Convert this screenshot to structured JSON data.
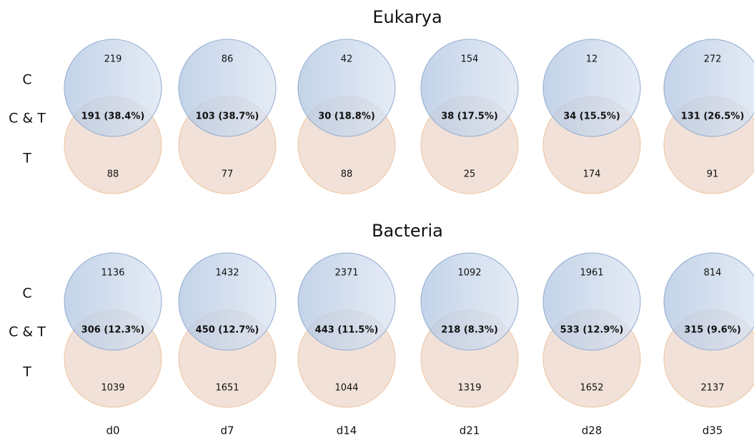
{
  "panels": [
    {
      "title": "Eukarya",
      "row_labels": [
        "C",
        "C & T",
        "T"
      ],
      "venns": [
        {
          "top": 219,
          "overlap": "191 (38.4%)",
          "bottom": 88
        },
        {
          "top": 86,
          "overlap": "103 (38.7%)",
          "bottom": 77
        },
        {
          "top": 42,
          "overlap": "30 (18.8%)",
          "bottom": 88
        },
        {
          "top": 154,
          "overlap": "38 (17.5%)",
          "bottom": 25
        },
        {
          "top": 12,
          "overlap": "34 (15.5%)",
          "bottom": 174
        },
        {
          "top": 272,
          "overlap": "131 (26.5%)",
          "bottom": 91
        }
      ]
    },
    {
      "title": "Bacteria",
      "row_labels": [
        "C",
        "C & T",
        "T"
      ],
      "venns": [
        {
          "top": 1136,
          "overlap": "306 (12.3%)",
          "bottom": 1039
        },
        {
          "top": 1432,
          "overlap": "450 (12.7%)",
          "bottom": 1651
        },
        {
          "top": 2371,
          "overlap": "443 (11.5%)",
          "bottom": 1044
        },
        {
          "top": 1092,
          "overlap": "218 (8.3%)",
          "bottom": 1319
        },
        {
          "top": 1961,
          "overlap": "533 (12.9%)",
          "bottom": 1652
        },
        {
          "top": 814,
          "overlap": "315 (9.6%)",
          "bottom": 2137
        }
      ]
    }
  ],
  "columns": [
    "d0",
    "d7",
    "d14",
    "d21",
    "d28",
    "d35"
  ]
}
